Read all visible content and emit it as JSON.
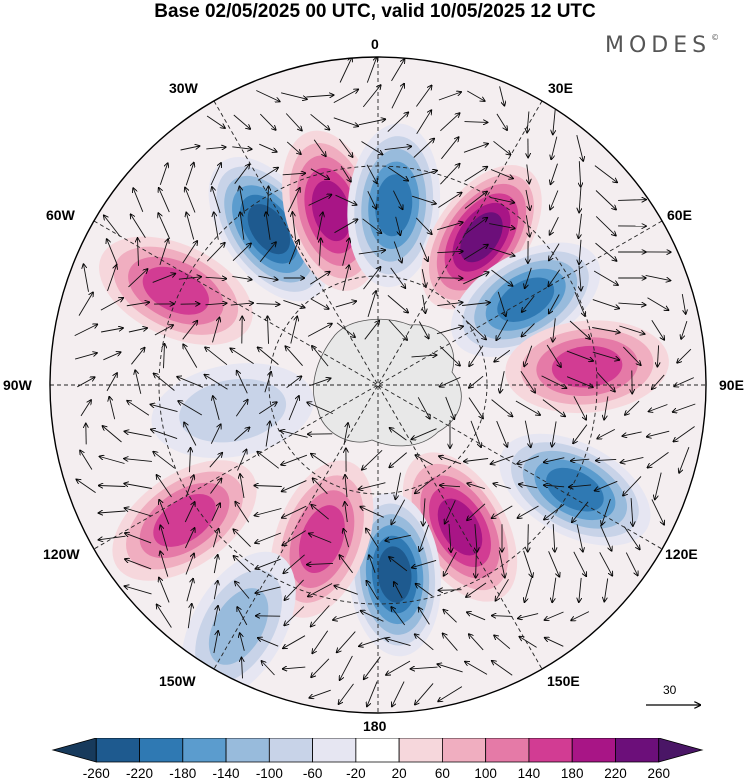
{
  "title": "Base 02/05/2025 00 UTC, valid 10/05/2025 12 UTC",
  "brand": "MODES",
  "brand_mark": "©",
  "longitude_labels": {
    "top": "0",
    "top_right": "30E",
    "right_upper": "60E",
    "right": "90E",
    "right_lower": "120E",
    "bottom_right": "150E",
    "bottom": "180",
    "bottom_left": "150W",
    "left_lower": "120W",
    "left": "90W",
    "left_upper": "60W",
    "top_left": "30W"
  },
  "vector_scale_label": "30",
  "colorbar": {
    "labels": [
      "-260",
      "-220",
      "-180",
      "-140",
      "-100",
      "-60",
      "-20",
      "20",
      "60",
      "100",
      "140",
      "180",
      "220",
      "260"
    ],
    "colors": [
      "#173a5c",
      "#1e5a8f",
      "#2f79b3",
      "#5b9cce",
      "#98bbdc",
      "#c8d3e8",
      "#e6e6f2",
      "#ffffff",
      "#f6d7dc",
      "#f0aec0",
      "#e57aa7",
      "#d23c93",
      "#a81586",
      "#6c0f7a",
      "#4a1666"
    ]
  },
  "anomaly_centers": [
    {
      "lon": -35,
      "lat_frac": 0.58,
      "value": -220
    },
    {
      "lon": -15,
      "lat_frac": 0.55,
      "value": 200
    },
    {
      "lon": 5,
      "lat_frac": 0.55,
      "value": -200
    },
    {
      "lon": 35,
      "lat_frac": 0.55,
      "value": 240
    },
    {
      "lon": 60,
      "lat_frac": 0.52,
      "value": -180
    },
    {
      "lon": 85,
      "lat_frac": 0.64,
      "value": 160
    },
    {
      "lon": 118,
      "lat_frac": 0.68,
      "value": -200
    },
    {
      "lon": 150,
      "lat_frac": 0.5,
      "value": 200
    },
    {
      "lon": 175,
      "lat_frac": 0.58,
      "value": -220
    },
    {
      "lon": -160,
      "lat_frac": 0.5,
      "value": 160
    },
    {
      "lon": -125,
      "lat_frac": 0.72,
      "value": 160
    },
    {
      "lon": -65,
      "lat_frac": 0.68,
      "value": 140
    },
    {
      "lon": -100,
      "lat_frac": 0.45,
      "value": -60
    },
    {
      "lon": -150,
      "lat_frac": 0.85,
      "value": -100
    }
  ]
}
